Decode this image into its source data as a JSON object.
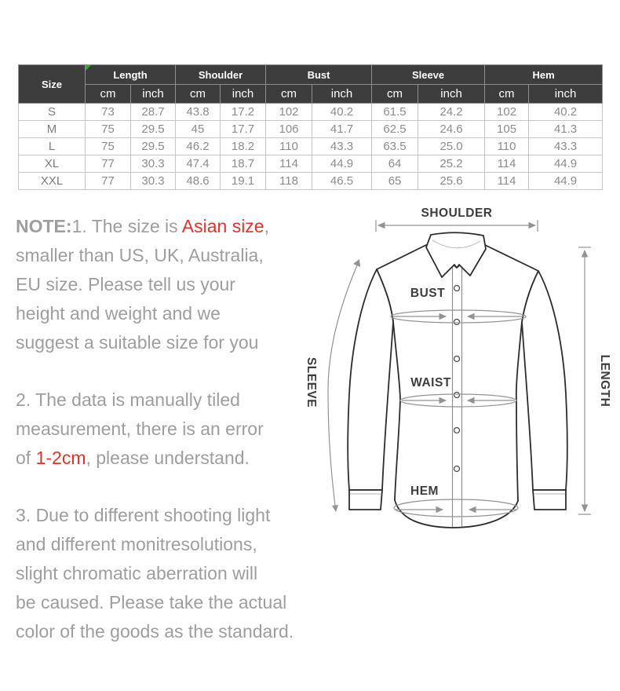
{
  "size_table": {
    "corner_label": "Size",
    "columns": [
      "Length",
      "Shoulder",
      "Bust",
      "Sleeve",
      "Hem"
    ],
    "unit_labels": [
      "cm",
      "inch"
    ],
    "rows": [
      {
        "size": "S",
        "values": [
          "73",
          "28.7",
          "43.8",
          "17.2",
          "102",
          "40.2",
          "61.5",
          "24.2",
          "102",
          "40.2"
        ]
      },
      {
        "size": "M",
        "values": [
          "75",
          "29.5",
          "45",
          "17.7",
          "106",
          "41.7",
          "62.5",
          "24.6",
          "105",
          "41.3"
        ]
      },
      {
        "size": "L",
        "values": [
          "75",
          "29.5",
          "46.2",
          "18.2",
          "110",
          "43.3",
          "63.5",
          "25.0",
          "110",
          "43.3"
        ]
      },
      {
        "size": "XL",
        "values": [
          "77",
          "30.3",
          "47.4",
          "18.7",
          "114",
          "44.9",
          "64",
          "25.2",
          "114",
          "44.9"
        ]
      },
      {
        "size": "XXL",
        "values": [
          "77",
          "30.3",
          "48.6",
          "19.1",
          "118",
          "46.5",
          "65",
          "25.6",
          "114",
          "44.9"
        ]
      }
    ]
  },
  "notes": {
    "paragraphs": [
      {
        "lines": [
          [
            {
              "t": "NOTE:",
              "b": true
            },
            {
              "t": "1. The size is "
            },
            {
              "t": "Asian size",
              "c": "red"
            },
            {
              "t": ","
            }
          ],
          [
            {
              "t": "smaller than US, UK, Australia,"
            }
          ],
          [
            {
              "t": "EU size. Please tell us your"
            }
          ],
          [
            {
              "t": "height and weight and we"
            }
          ],
          [
            {
              "t": "suggest a suitable size for you"
            }
          ]
        ]
      },
      {
        "lines": [
          [
            {
              "t": "2. The data is manually tiled"
            }
          ],
          [
            {
              "t": "measurement, there is an error"
            }
          ],
          [
            {
              "t": "of "
            },
            {
              "t": "1-2cm",
              "c": "red"
            },
            {
              "t": ", please understand."
            }
          ]
        ]
      },
      {
        "lines": [
          [
            {
              "t": "3. Due to different shooting light"
            }
          ],
          [
            {
              "t": "and different monitresolutions,"
            }
          ],
          [
            {
              "t": "slight chromatic aberration will"
            }
          ],
          [
            {
              "t": "be caused. Please take the actual"
            }
          ],
          [
            {
              "t": "color of the goods as the standard."
            }
          ]
        ]
      }
    ]
  },
  "diagram": {
    "labels": {
      "shoulder": "SHOULDER",
      "bust": "BUST",
      "waist": "WAIST",
      "sleeve": "SLEEVE",
      "hem": "HEM",
      "length": "LENGTH"
    }
  },
  "colors": {
    "accent_red": "#de342c",
    "note_gray": "#9e9e9e",
    "header_bg": "#3d3d3d",
    "table_gray": "#8c8c8c",
    "marker_green": "#37a837",
    "line_dark": "#2d2d2d",
    "line_gray": "#939393",
    "label_dark": "#3d3d3d"
  }
}
